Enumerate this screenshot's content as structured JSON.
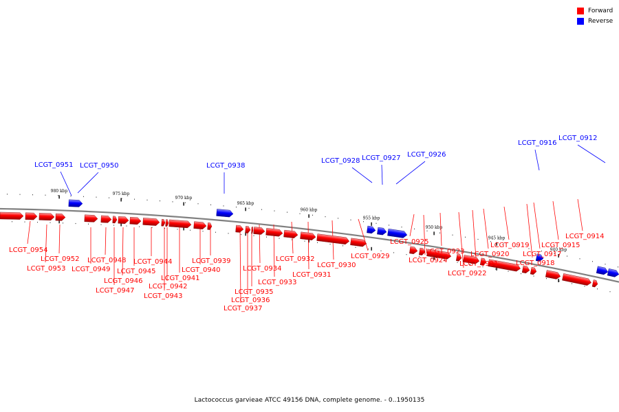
{
  "legend": [
    {
      "label": "Forward",
      "color": "#ff0000"
    },
    {
      "label": "Reverse",
      "color": "#0000ff"
    }
  ],
  "caption": "Lactococcus garvieae ATCC 49156 DNA, complete genome. - 0..1950135",
  "colors": {
    "forward": "#ff0000",
    "reverse": "#0000ff",
    "backbone": "#808080"
  },
  "scale_marks": [
    "980 kbp",
    "975 kbp",
    "970 kbp",
    "965 kbp",
    "960 kbp",
    "955 kbp",
    "950 kbp",
    "945 kbp",
    "940 kbp"
  ],
  "forward_labels": [
    "LCGT_0954",
    "LCGT_0953",
    "LCGT_0952",
    "LCGT_0949",
    "LCGT_0948",
    "LCGT_0947",
    "LCGT_0946",
    "LCGT_0945",
    "LCGT_0944",
    "LCGT_0943",
    "LCGT_0942",
    "LCGT_0941",
    "LCGT_0940",
    "LCGT_0939",
    "LCGT_0937",
    "LCGT_0936",
    "LCGT_0935",
    "LCGT_0934",
    "LCGT_0933",
    "LCGT_0932",
    "LCGT_0931",
    "LCGT_0930",
    "LCGT_0929",
    "LCGT_0925",
    "LCGT_0924",
    "LCGT_0923",
    "LCGT_0922",
    "LCGT_0921",
    "LCGT_0920",
    "LCGT_0919",
    "LCGT_0918",
    "LCGT_0917",
    "LCGT_0915",
    "LCGT_0914"
  ],
  "reverse_labels": [
    "LCGT_0951",
    "LCGT_0950",
    "LCGT_0938",
    "LCGT_0928",
    "LCGT_0927",
    "LCGT_0926",
    "LCGT_0916",
    "LCGT_0912"
  ]
}
